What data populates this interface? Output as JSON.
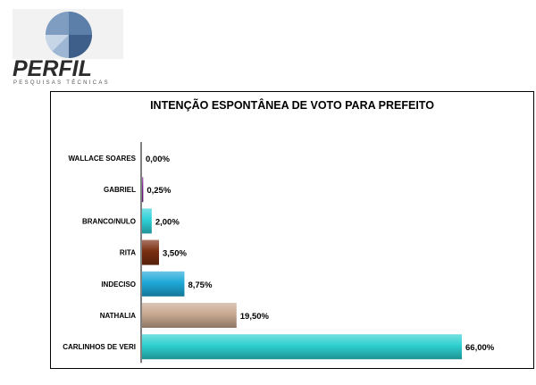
{
  "logo": {
    "word": "PERFIL",
    "sub": "PESQUISAS TÉCNICAS",
    "colors": [
      "#5b7fa8",
      "#9db6d3",
      "#3e5f8a",
      "#c7d6e6"
    ]
  },
  "chart_data": {
    "type": "bar",
    "orientation": "horizontal",
    "title": "INTENÇÃO ESPONTÂNEA DE VOTO PARA PREFEITO",
    "xlabel": "",
    "ylabel": "",
    "xlim": [
      0,
      66
    ],
    "grid": false,
    "legend": "none",
    "categories": [
      "WALLACE SOARES",
      "GABRIEL",
      "BRANCO/NULO",
      "RITA",
      "INDECISO",
      "NATHALIA",
      "CARLINHOS DE VERI"
    ],
    "values": [
      0.0,
      0.25,
      2.0,
      3.5,
      8.75,
      19.5,
      66.0
    ],
    "value_labels": [
      "0,00%",
      "0,25%",
      "2,00%",
      "3,50%",
      "8,75%",
      "19,50%",
      "66,00%"
    ],
    "colors": [
      "#3a8a8a",
      "#7a1f8f",
      "#2ed0d8",
      "#7a2e10",
      "#1ea8d8",
      "#c8a890",
      "#2ed0d0"
    ]
  }
}
